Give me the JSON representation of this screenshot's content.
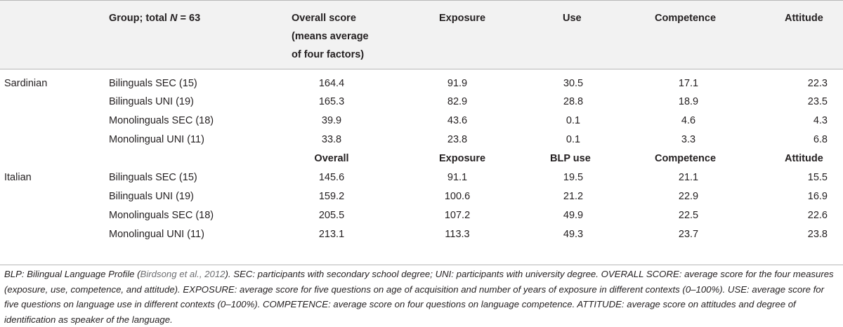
{
  "headers": {
    "group": "Group; total ",
    "group_n": "N",
    "group_eq": " = 63",
    "overall_line1": "Overall score",
    "overall_line2": "(means average",
    "overall_line3": "of four factors)",
    "exposure": "Exposure",
    "use": "Use",
    "competence": "Competence",
    "attitude": "Attitude"
  },
  "sardinian": {
    "label": "Sardinian",
    "rows": [
      {
        "group": "Bilinguals SEC (15)",
        "overall": "164.4",
        "exposure": "91.9",
        "use": "30.5",
        "competence": "17.1",
        "attitude": "22.3"
      },
      {
        "group": "Bilinguals UNI (19)",
        "overall": "165.3",
        "exposure": "82.9",
        "use": "28.8",
        "competence": "18.9",
        "attitude": "23.5"
      },
      {
        "group": "Monolinguals SEC (18)",
        "overall": "39.9",
        "exposure": "43.6",
        "use": "0.1",
        "competence": "4.6",
        "attitude": "4.3"
      },
      {
        "group": "Monolingual UNI (11)",
        "overall": "33.8",
        "exposure": "23.8",
        "use": "0.1",
        "competence": "3.3",
        "attitude": "6.8"
      }
    ]
  },
  "italian_headers": {
    "overall": "Overall",
    "exposure": "Exposure",
    "use": "BLP use",
    "competence": "Competence",
    "attitude": "Attitude"
  },
  "italian": {
    "label": "Italian",
    "rows": [
      {
        "group": "Bilinguals SEC (15)",
        "overall": "145.6",
        "exposure": "91.1",
        "use": "19.5",
        "competence": "21.1",
        "attitude": "15.5"
      },
      {
        "group": "Bilinguals UNI (19)",
        "overall": "159.2",
        "exposure": "100.6",
        "use": "21.2",
        "competence": "22.9",
        "attitude": "16.9"
      },
      {
        "group": "Monolinguals SEC (18)",
        "overall": "205.5",
        "exposure": "107.2",
        "use": "49.9",
        "competence": "22.5",
        "attitude": "22.6"
      },
      {
        "group": "Monolingual UNI (11)",
        "overall": "213.1",
        "exposure": "113.3",
        "use": "49.3",
        "competence": "23.7",
        "attitude": "23.8"
      }
    ]
  },
  "footnote": {
    "part1": "BLP: Bilingual Language Profile (",
    "citation": "Birdsong et al., 2012",
    "part2": "). SEC: participants with secondary school degree; UNI: participants with university degree. OVERALL SCORE: average score for the four measures (exposure, use, competence, and attitude). EXPOSURE: average score for five questions on age of acquisition and number of years of exposure in different contexts (0–100%). USE: average score for five questions on language use in different contexts (0–100%). COMPETENCE: average score on four questions on language competence. ATTITUDE: average score on attitudes and degree of identification as speaker of the language."
  }
}
